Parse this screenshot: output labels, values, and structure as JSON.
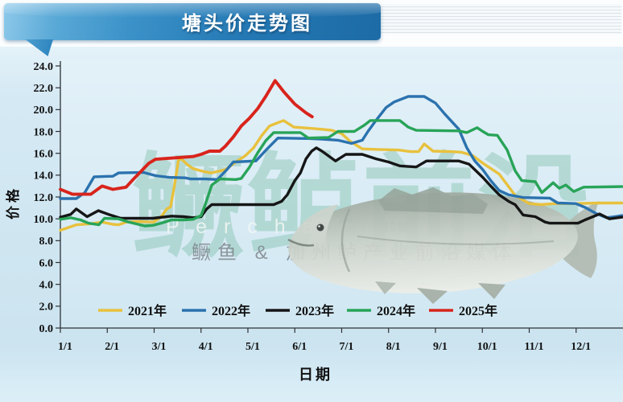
{
  "banner": {
    "title": "塘头价走势图"
  },
  "watermark": {
    "main": "鳜鲈前沿",
    "latin_left": "P e r c h   a n d   B a s s",
    "latin_right": "e r",
    "sub": "鳜鱼 & 加州鲈产业前沿媒体"
  },
  "chart_data": {
    "type": "line",
    "title": "塘头价走势图",
    "xlabel": "日期",
    "ylabel": "价格",
    "ylim": [
      0,
      24
    ],
    "y_tick_step": 2,
    "x_tick_labels": [
      "1/1",
      "2/1",
      "3/1",
      "4/1",
      "5/1",
      "6/1",
      "7/1",
      "8/1",
      "9/1",
      "10/1",
      "11/1",
      "12/1"
    ],
    "grid": false,
    "legend_position": "bottom-inside",
    "x_unit": "month (1.0 = Jan 1, 13.0 = Dec 31)",
    "series": [
      {
        "name": "2021年",
        "color": "#E8C13D",
        "points": [
          [
            1.0,
            8.95
          ],
          [
            1.17,
            9.2
          ],
          [
            1.34,
            9.45
          ],
          [
            1.65,
            9.55
          ],
          [
            1.89,
            9.7
          ],
          [
            2.12,
            9.5
          ],
          [
            2.24,
            9.45
          ],
          [
            2.41,
            9.7
          ],
          [
            2.63,
            9.75
          ],
          [
            2.99,
            9.7
          ],
          [
            3.15,
            10.2
          ],
          [
            3.27,
            10.9
          ],
          [
            3.35,
            11.1
          ],
          [
            3.44,
            13.2
          ],
          [
            3.52,
            15.4
          ],
          [
            3.58,
            15.5
          ],
          [
            3.7,
            15.0
          ],
          [
            3.83,
            14.6
          ],
          [
            4.04,
            14.35
          ],
          [
            4.21,
            14.2
          ],
          [
            4.52,
            14.5
          ],
          [
            4.74,
            15.2
          ],
          [
            4.95,
            15.8
          ],
          [
            5.12,
            16.5
          ],
          [
            5.29,
            17.6
          ],
          [
            5.46,
            18.5
          ],
          [
            5.64,
            18.8
          ],
          [
            5.76,
            19.0
          ],
          [
            5.98,
            18.4
          ],
          [
            6.3,
            18.3
          ],
          [
            6.58,
            18.2
          ],
          [
            6.79,
            18.1
          ],
          [
            7.0,
            17.8
          ],
          [
            7.18,
            17.1
          ],
          [
            7.44,
            16.4
          ],
          [
            7.78,
            16.35
          ],
          [
            8.21,
            16.3
          ],
          [
            8.47,
            16.15
          ],
          [
            8.64,
            16.15
          ],
          [
            8.76,
            16.85
          ],
          [
            8.95,
            16.2
          ],
          [
            9.33,
            16.15
          ],
          [
            9.55,
            16.1
          ],
          [
            9.79,
            15.8
          ],
          [
            10.01,
            15.1
          ],
          [
            10.36,
            14.1
          ],
          [
            10.7,
            12.15
          ],
          [
            11.0,
            11.4
          ],
          [
            11.25,
            11.3
          ],
          [
            11.56,
            11.4
          ],
          [
            11.99,
            11.4
          ],
          [
            12.5,
            11.45
          ],
          [
            12.98,
            11.45
          ]
        ]
      },
      {
        "name": "2022年",
        "color": "#2B72AE",
        "points": [
          [
            1.0,
            11.85
          ],
          [
            1.34,
            11.85
          ],
          [
            1.52,
            12.4
          ],
          [
            1.72,
            13.85
          ],
          [
            2.12,
            13.9
          ],
          [
            2.24,
            14.2
          ],
          [
            2.77,
            14.25
          ],
          [
            3.03,
            13.95
          ],
          [
            3.32,
            13.8
          ],
          [
            3.66,
            13.75
          ],
          [
            3.78,
            13.65
          ],
          [
            4.09,
            13.65
          ],
          [
            4.35,
            13.6
          ],
          [
            4.55,
            14.5
          ],
          [
            4.69,
            15.2
          ],
          [
            5.17,
            15.3
          ],
          [
            5.41,
            16.4
          ],
          [
            5.64,
            17.4
          ],
          [
            6.3,
            17.35
          ],
          [
            6.58,
            17.3
          ],
          [
            6.92,
            17.2
          ],
          [
            7.21,
            16.9
          ],
          [
            7.44,
            17.2
          ],
          [
            7.56,
            18.0
          ],
          [
            7.73,
            19.0
          ],
          [
            7.95,
            20.2
          ],
          [
            8.12,
            20.7
          ],
          [
            8.42,
            21.2
          ],
          [
            8.76,
            21.2
          ],
          [
            9.0,
            20.6
          ],
          [
            9.2,
            19.6
          ],
          [
            9.5,
            18.2
          ],
          [
            9.67,
            16.5
          ],
          [
            9.84,
            15.3
          ],
          [
            10.01,
            14.5
          ],
          [
            10.18,
            13.5
          ],
          [
            10.36,
            12.6
          ],
          [
            10.56,
            12.2
          ],
          [
            10.87,
            11.95
          ],
          [
            11.44,
            11.9
          ],
          [
            11.61,
            11.45
          ],
          [
            11.99,
            11.4
          ],
          [
            12.19,
            11.05
          ],
          [
            12.42,
            10.5
          ],
          [
            12.65,
            10.1
          ],
          [
            12.82,
            10.2
          ],
          [
            12.98,
            10.3
          ]
        ]
      },
      {
        "name": "2023年",
        "color": "#161616",
        "points": [
          [
            1.0,
            10.15
          ],
          [
            1.22,
            10.4
          ],
          [
            1.34,
            10.9
          ],
          [
            1.57,
            10.2
          ],
          [
            1.81,
            10.75
          ],
          [
            2.03,
            10.4
          ],
          [
            2.29,
            10.05
          ],
          [
            2.97,
            10.05
          ],
          [
            3.37,
            10.25
          ],
          [
            3.63,
            10.2
          ],
          [
            3.83,
            10.1
          ],
          [
            4.0,
            10.2
          ],
          [
            4.12,
            10.9
          ],
          [
            4.23,
            11.3
          ],
          [
            5.55,
            11.3
          ],
          [
            5.72,
            11.6
          ],
          [
            5.84,
            12.2
          ],
          [
            6.0,
            13.5
          ],
          [
            6.12,
            14.2
          ],
          [
            6.24,
            15.5
          ],
          [
            6.36,
            16.2
          ],
          [
            6.46,
            16.5
          ],
          [
            6.58,
            16.2
          ],
          [
            6.87,
            15.3
          ],
          [
            7.09,
            15.9
          ],
          [
            7.44,
            15.9
          ],
          [
            7.73,
            15.5
          ],
          [
            8.0,
            15.2
          ],
          [
            8.24,
            14.85
          ],
          [
            8.59,
            14.75
          ],
          [
            8.81,
            15.3
          ],
          [
            9.5,
            15.3
          ],
          [
            9.72,
            15.0
          ],
          [
            10.01,
            13.8
          ],
          [
            10.18,
            13.0
          ],
          [
            10.36,
            12.2
          ],
          [
            10.56,
            11.6
          ],
          [
            10.7,
            11.3
          ],
          [
            10.87,
            10.35
          ],
          [
            11.13,
            10.2
          ],
          [
            11.34,
            9.7
          ],
          [
            11.44,
            9.6
          ],
          [
            12.04,
            9.6
          ],
          [
            12.19,
            9.9
          ],
          [
            12.42,
            10.3
          ],
          [
            12.5,
            10.45
          ],
          [
            12.71,
            10.0
          ],
          [
            12.98,
            10.15
          ]
        ]
      },
      {
        "name": "2024年",
        "color": "#28A458",
        "points": [
          [
            1.0,
            9.95
          ],
          [
            1.22,
            10.1
          ],
          [
            1.43,
            9.9
          ],
          [
            1.6,
            9.6
          ],
          [
            1.82,
            9.45
          ],
          [
            1.94,
            10.05
          ],
          [
            2.24,
            10.0
          ],
          [
            2.46,
            9.7
          ],
          [
            2.8,
            9.35
          ],
          [
            2.97,
            9.4
          ],
          [
            3.15,
            9.6
          ],
          [
            3.37,
            9.9
          ],
          [
            3.63,
            9.9
          ],
          [
            3.83,
            9.95
          ],
          [
            4.0,
            10.3
          ],
          [
            4.09,
            11.3
          ],
          [
            4.23,
            13.1
          ],
          [
            4.4,
            13.65
          ],
          [
            4.74,
            13.6
          ],
          [
            4.86,
            13.7
          ],
          [
            5.03,
            14.7
          ],
          [
            5.21,
            16.05
          ],
          [
            5.38,
            17.15
          ],
          [
            5.55,
            17.9
          ],
          [
            6.12,
            17.9
          ],
          [
            6.29,
            17.4
          ],
          [
            6.72,
            17.45
          ],
          [
            6.92,
            18.0
          ],
          [
            7.27,
            18.0
          ],
          [
            7.49,
            18.6
          ],
          [
            7.61,
            19.0
          ],
          [
            8.24,
            19.0
          ],
          [
            8.42,
            18.4
          ],
          [
            8.59,
            18.1
          ],
          [
            9.5,
            18.05
          ],
          [
            9.67,
            17.9
          ],
          [
            9.89,
            18.35
          ],
          [
            10.01,
            18.0
          ],
          [
            10.13,
            17.7
          ],
          [
            10.32,
            17.65
          ],
          [
            10.53,
            16.3
          ],
          [
            10.7,
            14.4
          ],
          [
            10.84,
            13.5
          ],
          [
            11.13,
            13.4
          ],
          [
            11.27,
            12.4
          ],
          [
            11.51,
            13.3
          ],
          [
            11.64,
            12.8
          ],
          [
            11.78,
            13.1
          ],
          [
            11.95,
            12.5
          ],
          [
            12.16,
            12.9
          ],
          [
            12.98,
            12.95
          ]
        ]
      },
      {
        "name": "2025年",
        "color": "#D8241C",
        "points": [
          [
            1.0,
            12.7
          ],
          [
            1.26,
            12.25
          ],
          [
            1.65,
            12.25
          ],
          [
            1.89,
            13.0
          ],
          [
            2.12,
            12.7
          ],
          [
            2.4,
            12.9
          ],
          [
            2.55,
            13.6
          ],
          [
            2.72,
            14.35
          ],
          [
            2.89,
            15.1
          ],
          [
            3.03,
            15.45
          ],
          [
            3.83,
            15.7
          ],
          [
            4.0,
            15.9
          ],
          [
            4.18,
            16.2
          ],
          [
            4.4,
            16.2
          ],
          [
            4.52,
            16.65
          ],
          [
            4.69,
            17.5
          ],
          [
            4.86,
            18.5
          ],
          [
            5.03,
            19.2
          ],
          [
            5.21,
            20.1
          ],
          [
            5.38,
            21.2
          ],
          [
            5.58,
            22.65
          ],
          [
            5.77,
            21.6
          ],
          [
            6.0,
            20.5
          ],
          [
            6.24,
            19.7
          ],
          [
            6.37,
            19.35
          ]
        ]
      }
    ]
  }
}
